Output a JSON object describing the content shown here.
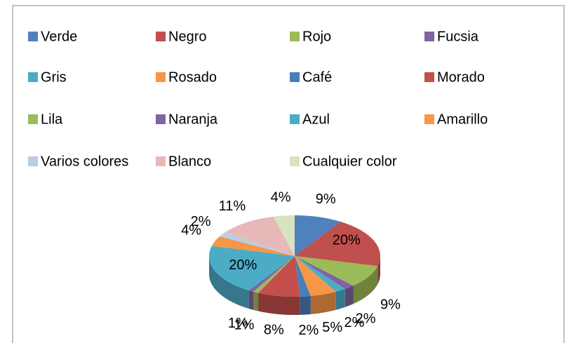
{
  "chart_data": {
    "type": "pie",
    "categories": [
      "Verde",
      "Negro",
      "Rojo",
      "Fucsia",
      "Gris",
      "Rosado",
      "Café",
      "Morado",
      "Lila",
      "Naranja",
      "Azul",
      "Amarillo",
      "Varios colores",
      "Blanco",
      "Cualquier color"
    ],
    "values": [
      9,
      20,
      9,
      2,
      2,
      5,
      2,
      8,
      1,
      1,
      20,
      4,
      2,
      11,
      4
    ],
    "value_labels": [
      "9%",
      "20%",
      "9%",
      "2%",
      "2%",
      "5%",
      "2%",
      "8%",
      "1%",
      "1%",
      "20%",
      "4%",
      "2%",
      "11%",
      "4%"
    ],
    "colors": [
      "#4f81bd",
      "#c0504d",
      "#9bbb59",
      "#8064a2",
      "#4bacc6",
      "#f79646",
      "#4a7ebb",
      "#c44e4b",
      "#9bbb59",
      "#8064a2",
      "#4bacc6",
      "#f79646",
      "#b9cde5",
      "#e6b9b8",
      "#d7e4bd"
    ],
    "legend": "top"
  }
}
